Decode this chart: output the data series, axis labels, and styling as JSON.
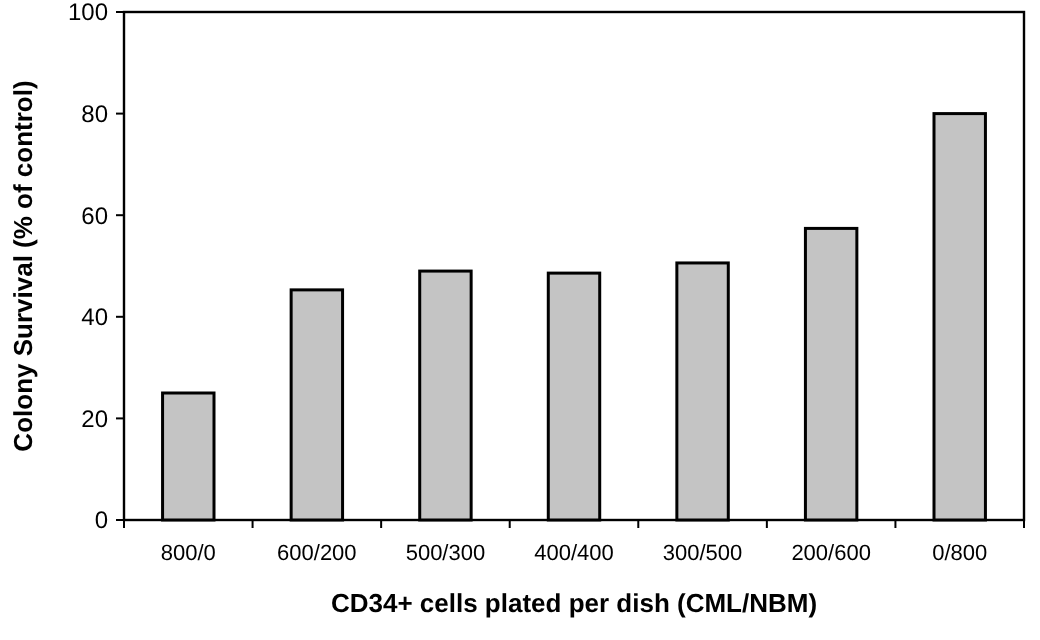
{
  "chart_data": {
    "type": "bar",
    "xlabel": "CD34+ cells plated per dish (CML/NBM)",
    "ylabel": "Colony Survival (% of control)",
    "categories": [
      "800/0",
      "600/200",
      "500/300",
      "400/400",
      "300/500",
      "200/600",
      "0/800"
    ],
    "values": [
      25,
      45.3,
      49,
      48.6,
      50.6,
      57.4,
      80
    ],
    "color": "#c4c4c4",
    "ylim": [
      0,
      100
    ],
    "yticks": [
      0,
      20,
      40,
      60,
      80,
      100
    ],
    "grid": false
  }
}
